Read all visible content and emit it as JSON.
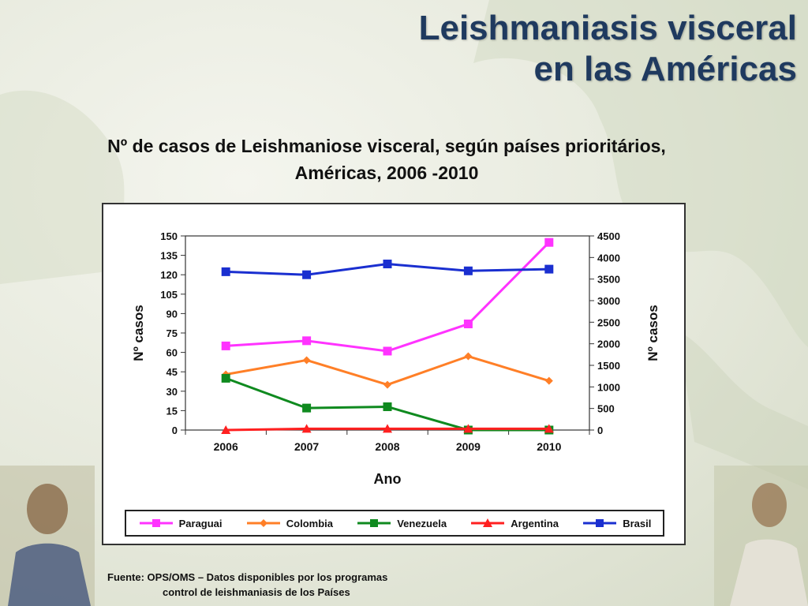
{
  "slide": {
    "title_line1": "Leishmaniasis visceral",
    "title_line2": "en las Américas",
    "chart_heading_line1": "Nº de casos de Leishmaniose visceral, según países prioritários,",
    "chart_heading_line2": "Américas, 2006 -2010",
    "source_line1": "Fuente:  OPS/OMS – Datos disponibles por los programas",
    "source_line2": "control de leishmaniasis de los Países"
  },
  "colors": {
    "title": "#1f3a5f",
    "paraguai": "#ff33ff",
    "colombia": "#ff7f27",
    "venezuela": "#0f8a1f",
    "argentina": "#ff2020",
    "brasil": "#1a2fd0"
  },
  "chart_data": {
    "type": "line",
    "xlabel": "Ano",
    "ylabel_left": "Nº casos",
    "ylabel_right": "Nº casos",
    "categories": [
      "2006",
      "2007",
      "2008",
      "2009",
      "2010"
    ],
    "ylim_left": [
      0,
      150
    ],
    "ylim_right": [
      0,
      4500
    ],
    "yticks_left": [
      "0",
      "15",
      "30",
      "45",
      "60",
      "75",
      "90",
      "105",
      "120",
      "135",
      "150"
    ],
    "yticks_right": [
      "0",
      "500",
      "1000",
      "1500",
      "2000",
      "2500",
      "3000",
      "3500",
      "4000",
      "4500"
    ],
    "grid": false,
    "legend_position": "bottom",
    "series": [
      {
        "name": "Paraguai",
        "axis": "left",
        "marker": "square",
        "values": [
          65,
          69,
          61,
          82,
          145
        ]
      },
      {
        "name": "Colombia",
        "axis": "left",
        "marker": "diamond",
        "values": [
          43,
          54,
          35,
          57,
          38
        ]
      },
      {
        "name": "Venezuela",
        "axis": "left",
        "marker": "square",
        "values": [
          40,
          17,
          18,
          0,
          0
        ]
      },
      {
        "name": "Argentina",
        "axis": "left",
        "marker": "triangle",
        "values": [
          0,
          1,
          1,
          1,
          1
        ]
      },
      {
        "name": "Brasil",
        "axis": "right",
        "marker": "square",
        "values": [
          3670,
          3600,
          3850,
          3690,
          3730
        ]
      }
    ]
  }
}
